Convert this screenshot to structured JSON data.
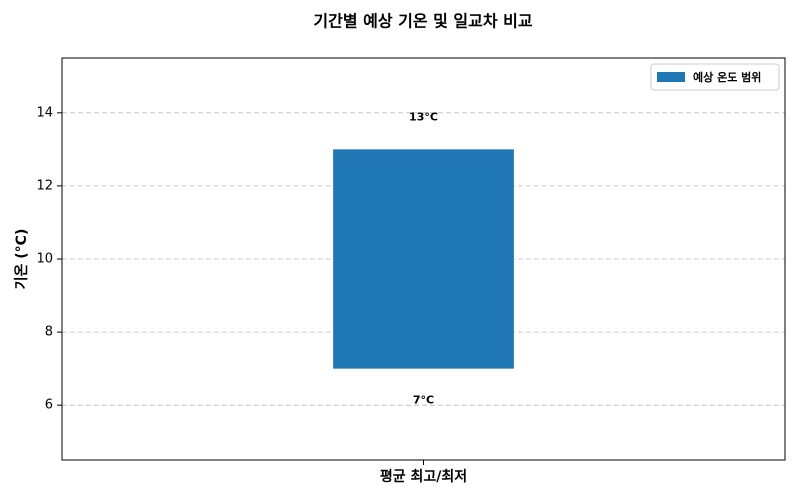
{
  "chart_data": {
    "type": "floating-bar",
    "title": "기간별 예상 기온 및 일교차 비교",
    "ylabel": "기온 (°C)",
    "categories": [
      "평균 최고/최저"
    ],
    "series": [
      {
        "name": "예상 온도 범위",
        "color": "#1f77b4",
        "low": [
          7
        ],
        "high": [
          13
        ],
        "low_labels": [
          "7°C"
        ],
        "high_labels": [
          "13°C"
        ]
      }
    ],
    "ylim": [
      4.5,
      15.5
    ],
    "yticks": [
      6,
      8,
      10,
      12,
      14
    ],
    "grid": true,
    "legend": "upper right"
  }
}
